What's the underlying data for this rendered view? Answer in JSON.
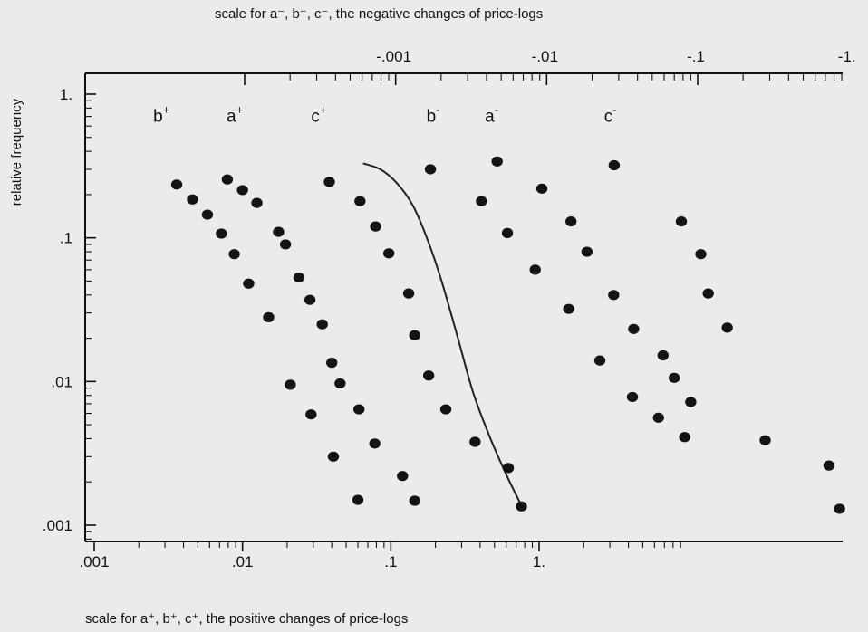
{
  "chart_data": {
    "type": "scatter",
    "title": "",
    "x_top": {
      "label": "scale for a⁻, b⁻, c⁻, the negative changes of price-logs",
      "scale": "log",
      "range": [
        -0.0001,
        -1
      ],
      "ticks": [
        {
          "value": -0.001,
          "label": "-.001"
        },
        {
          "value": -0.01,
          "label": "-.01"
        },
        {
          "value": -0.1,
          "label": "-.1"
        },
        {
          "value": -1,
          "label": "-1."
        }
      ]
    },
    "x_bottom": {
      "label": "scale for a⁺, b⁺, c⁺, the positive changes of price-logs",
      "scale": "log",
      "range": [
        0.001,
        3
      ],
      "ticks": [
        {
          "value": 0.001,
          "label": ".001"
        },
        {
          "value": 0.01,
          "label": ".01"
        },
        {
          "value": 0.1,
          "label": ".1"
        },
        {
          "value": 1,
          "label": "1."
        }
      ]
    },
    "y": {
      "label": "relative frequency",
      "scale": "log",
      "range": [
        0.00075,
        1.6
      ],
      "ticks": [
        {
          "value": 1,
          "label": "1."
        },
        {
          "value": 0.1,
          "label": ".1"
        },
        {
          "value": 0.01,
          "label": ".01"
        },
        {
          "value": 0.001,
          "label": ".001"
        }
      ]
    },
    "series": [
      {
        "name": "b",
        "sign": "+",
        "axis": "bottom",
        "label_x": 0.0025,
        "label_y": 0.7,
        "points": [
          [
            0.0036,
            0.235
          ],
          [
            0.0046,
            0.185
          ],
          [
            0.0058,
            0.145
          ],
          [
            0.0072,
            0.107
          ],
          [
            0.0088,
            0.077
          ],
          [
            0.011,
            0.048
          ],
          [
            0.015,
            0.028
          ],
          [
            0.021,
            0.0095
          ],
          [
            0.029,
            0.0059
          ]
        ]
      },
      {
        "name": "a",
        "sign": "+",
        "axis": "bottom",
        "label_x": 0.0078,
        "label_y": 0.7,
        "points": [
          [
            0.0079,
            0.255
          ],
          [
            0.01,
            0.215
          ],
          [
            0.0125,
            0.175
          ],
          [
            0.0175,
            0.11
          ],
          [
            0.0195,
            0.09
          ],
          [
            0.024,
            0.053
          ],
          [
            0.0285,
            0.037
          ],
          [
            0.0345,
            0.025
          ],
          [
            0.04,
            0.0135
          ],
          [
            0.0455,
            0.0097
          ]
        ]
      },
      {
        "name": "c",
        "sign": "+",
        "axis": "bottom",
        "label_x": 0.029,
        "label_y": 0.7,
        "points": [
          [
            0.0385,
            0.245
          ],
          [
            0.062,
            0.18
          ],
          [
            0.079,
            0.12
          ],
          [
            0.097,
            0.078
          ],
          [
            0.132,
            0.041
          ],
          [
            0.145,
            0.021
          ],
          [
            0.18,
            0.011
          ],
          [
            0.235,
            0.0064
          ],
          [
            0.37,
            0.0038
          ],
          [
            0.62,
            0.0025
          ],
          [
            0.76,
            0.00135
          ],
          [
            0.145,
            0.00148
          ],
          [
            0.12,
            0.0022
          ],
          [
            0.078,
            0.0037
          ],
          [
            0.061,
            0.0064
          ],
          [
            0.041,
            0.003
          ],
          [
            0.06,
            0.0015
          ]
        ]
      },
      {
        "name": "b",
        "sign": "-",
        "axis": "top",
        "label_x": -0.0016,
        "label_y": 0.7,
        "points": [
          [
            -0.0017,
            0.3
          ],
          [
            -0.0037,
            0.18
          ],
          [
            -0.0055,
            0.108
          ],
          [
            -0.0084,
            0.06
          ],
          [
            -0.014,
            0.032
          ],
          [
            -0.0225,
            0.014
          ],
          [
            -0.037,
            0.0078
          ],
          [
            -0.055,
            0.0056
          ],
          [
            -0.082,
            0.0041
          ]
        ]
      },
      {
        "name": "a",
        "sign": "-",
        "axis": "top",
        "label_x": -0.0039,
        "label_y": 0.7,
        "points": [
          [
            -0.0047,
            0.34
          ],
          [
            -0.0093,
            0.22
          ],
          [
            -0.0145,
            0.13
          ],
          [
            -0.0185,
            0.08
          ],
          [
            -0.0278,
            0.04
          ],
          [
            -0.0377,
            0.0232
          ],
          [
            -0.059,
            0.0152
          ],
          [
            -0.07,
            0.0106
          ],
          [
            -0.09,
            0.0072
          ]
        ]
      },
      {
        "name": "c",
        "sign": "-",
        "axis": "top",
        "label_x": -0.024,
        "label_y": 0.7,
        "points": [
          [
            -0.028,
            0.32
          ],
          [
            -0.078,
            0.13
          ],
          [
            -0.105,
            0.077
          ],
          [
            -0.1175,
            0.041
          ],
          [
            -0.157,
            0.0237
          ],
          [
            -0.28,
            0.0039
          ],
          [
            -0.74,
            0.0026
          ],
          [
            -0.87,
            0.0013
          ]
        ]
      }
    ],
    "curve": {
      "axis": "bottom",
      "points": [
        [
          0.065,
          0.33
        ],
        [
          0.085,
          0.3
        ],
        [
          0.11,
          0.24
        ],
        [
          0.14,
          0.17
        ],
        [
          0.175,
          0.1
        ],
        [
          0.22,
          0.05
        ],
        [
          0.28,
          0.021
        ],
        [
          0.36,
          0.0083
        ],
        [
          0.48,
          0.0038
        ],
        [
          0.62,
          0.0021
        ],
        [
          0.78,
          0.0013
        ]
      ]
    }
  }
}
